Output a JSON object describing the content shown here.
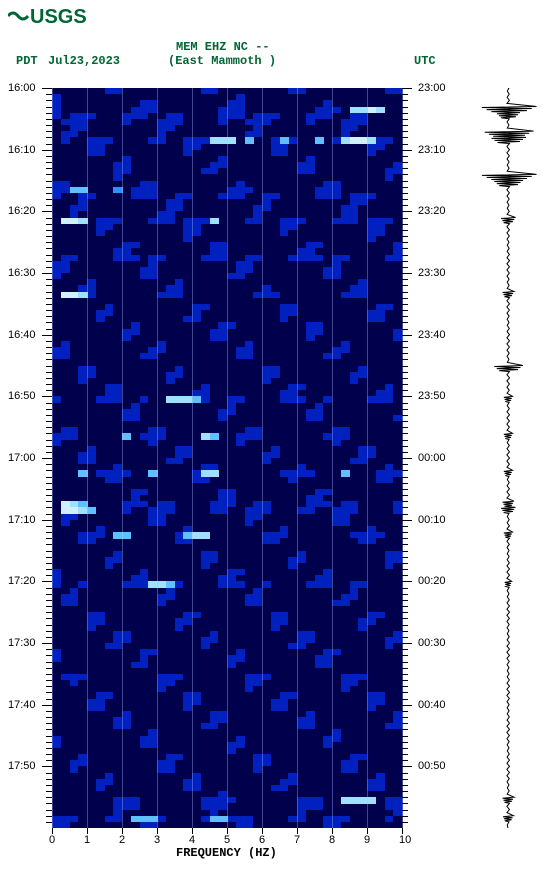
{
  "logo": {
    "text": "USGS",
    "bg": "#ffffff",
    "wave_color": "#006633"
  },
  "header": {
    "tz_left": "PDT",
    "date": "Jul23,2023",
    "station_line1": "MEM EHZ NC --",
    "station_line2": "(East Mammoth )",
    "tz_right": "UTC"
  },
  "spectrogram": {
    "type": "heatmap",
    "xlim": [
      0,
      10
    ],
    "xtick_step": 1,
    "xlabel": "FREQUENCY (HZ)",
    "ylim_left": [
      "16:00",
      "16:10",
      "16:20",
      "16:30",
      "16:40",
      "16:50",
      "17:00",
      "17:10",
      "17:20",
      "17:30",
      "17:40",
      "17:50"
    ],
    "ylim_right": [
      "23:00",
      "23:10",
      "23:20",
      "23:30",
      "23:40",
      "23:50",
      "00:00",
      "00:10",
      "00:20",
      "00:30",
      "00:40",
      "00:50"
    ],
    "y_rows": 120,
    "x_cols": 40,
    "bg_color_low": "#00004d",
    "bg_color_high": "#0020c0",
    "highlight_colors": [
      "#1050ff",
      "#3090ff",
      "#60c0ff",
      "#a0e0ff",
      "#d0f0ff"
    ],
    "grid_color": "rgba(180,200,255,0.35)",
    "hot_rows": [
      3,
      4,
      5,
      8,
      16,
      17,
      21,
      27,
      33,
      50,
      56,
      62,
      67,
      68,
      72,
      80,
      95,
      115,
      116,
      118
    ],
    "hot_cells": [
      [
        3,
        36,
        4
      ],
      [
        3,
        35,
        3
      ],
      [
        3,
        34,
        3
      ],
      [
        3,
        37,
        3
      ],
      [
        8,
        18,
        3
      ],
      [
        8,
        19,
        3
      ],
      [
        8,
        20,
        3
      ],
      [
        8,
        22,
        2
      ],
      [
        8,
        26,
        2
      ],
      [
        8,
        30,
        2
      ],
      [
        8,
        33,
        3
      ],
      [
        8,
        34,
        4
      ],
      [
        8,
        35,
        4
      ],
      [
        8,
        36,
        3
      ],
      [
        16,
        2,
        2
      ],
      [
        16,
        3,
        2
      ],
      [
        16,
        7,
        1
      ],
      [
        21,
        1,
        4
      ],
      [
        21,
        2,
        4
      ],
      [
        21,
        3,
        3
      ],
      [
        21,
        18,
        3
      ],
      [
        33,
        1,
        4
      ],
      [
        33,
        2,
        4
      ],
      [
        33,
        3,
        3
      ],
      [
        50,
        13,
        3
      ],
      [
        50,
        14,
        3
      ],
      [
        50,
        15,
        3
      ],
      [
        50,
        16,
        2
      ],
      [
        56,
        8,
        2
      ],
      [
        56,
        17,
        3
      ],
      [
        56,
        18,
        2
      ],
      [
        62,
        3,
        2
      ],
      [
        62,
        11,
        2
      ],
      [
        62,
        17,
        3
      ],
      [
        62,
        18,
        3
      ],
      [
        62,
        33,
        2
      ],
      [
        67,
        1,
        4
      ],
      [
        67,
        2,
        3
      ],
      [
        67,
        3,
        2
      ],
      [
        68,
        1,
        4
      ],
      [
        68,
        2,
        4
      ],
      [
        68,
        3,
        3
      ],
      [
        68,
        4,
        2
      ],
      [
        72,
        7,
        2
      ],
      [
        72,
        8,
        2
      ],
      [
        72,
        15,
        2
      ],
      [
        72,
        16,
        3
      ],
      [
        72,
        17,
        3
      ],
      [
        80,
        11,
        3
      ],
      [
        80,
        12,
        3
      ],
      [
        80,
        13,
        2
      ],
      [
        115,
        33,
        3
      ],
      [
        115,
        34,
        3
      ],
      [
        115,
        35,
        3
      ],
      [
        115,
        36,
        3
      ],
      [
        118,
        9,
        2
      ],
      [
        118,
        10,
        2
      ],
      [
        118,
        11,
        2
      ],
      [
        118,
        18,
        2
      ],
      [
        118,
        19,
        2
      ]
    ]
  },
  "seismogram": {
    "type": "waveform",
    "color": "#000000",
    "baseline": 0.5,
    "events": [
      {
        "row": 3,
        "amp": 0.95
      },
      {
        "row": 4,
        "amp": 0.4
      },
      {
        "row": 7,
        "amp": 0.85
      },
      {
        "row": 8,
        "amp": 0.6
      },
      {
        "row": 14,
        "amp": 0.95
      },
      {
        "row": 15,
        "amp": 0.5
      },
      {
        "row": 21,
        "amp": 0.25
      },
      {
        "row": 33,
        "amp": 0.2
      },
      {
        "row": 45,
        "amp": 0.5
      },
      {
        "row": 50,
        "amp": 0.15
      },
      {
        "row": 56,
        "amp": 0.15
      },
      {
        "row": 62,
        "amp": 0.15
      },
      {
        "row": 67,
        "amp": 0.2
      },
      {
        "row": 68,
        "amp": 0.25
      },
      {
        "row": 72,
        "amp": 0.15
      },
      {
        "row": 80,
        "amp": 0.12
      },
      {
        "row": 115,
        "amp": 0.2
      },
      {
        "row": 118,
        "amp": 0.18
      }
    ]
  }
}
